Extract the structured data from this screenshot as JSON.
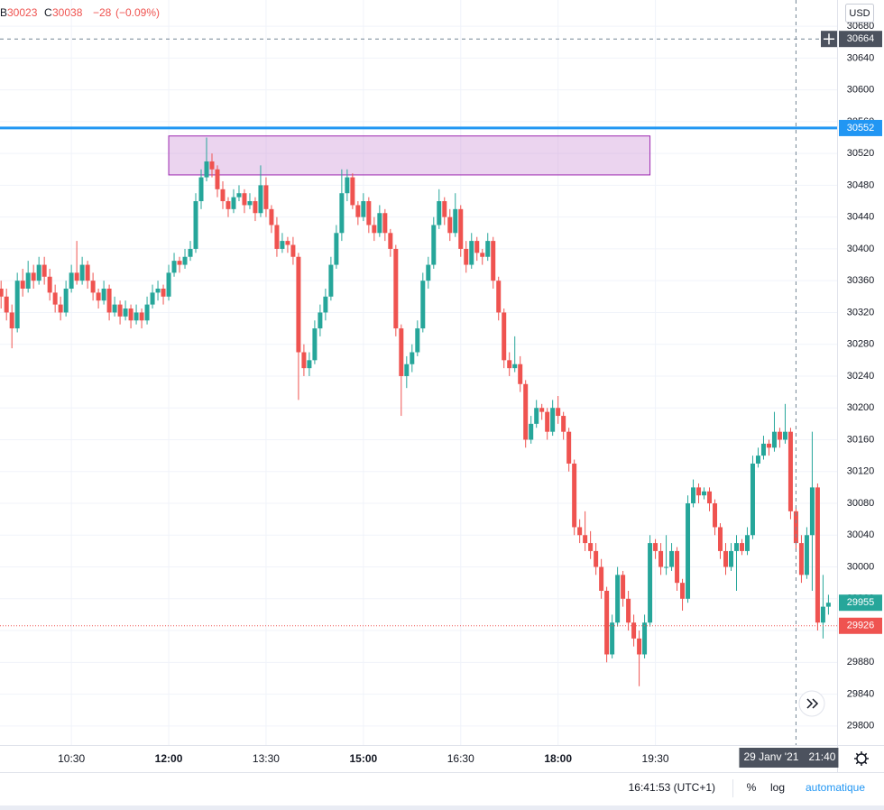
{
  "chart_data": {
    "type": "candlestick",
    "legend": {
      "low_label": "B",
      "low": 30023,
      "close_label": "C",
      "close": 30038,
      "change": {
        "value": -28,
        "label": "−28"
      },
      "change_pct": {
        "value": -0.09,
        "label": "(−0.09%)"
      }
    },
    "currency": "USD",
    "up_color": "#26a69a",
    "down_color": "#ef5350",
    "log_scale": false,
    "grid": true,
    "xlim": [
      "09:24",
      "22:18"
    ],
    "ylim": [
      29776,
      30713
    ],
    "xticks": [
      "10:30",
      "12:00",
      "13:30",
      "15:00",
      "16:30",
      "18:00",
      "19:30"
    ],
    "yticks": [
      29800,
      29840,
      29880,
      29920,
      29960,
      30000,
      30040,
      30080,
      30120,
      30160,
      30200,
      30240,
      30280,
      30320,
      30360,
      30400,
      30440,
      30480,
      30520,
      30560,
      30600,
      30640,
      30680
    ],
    "x": [
      "09:25",
      "09:30",
      "09:35",
      "09:40",
      "09:45",
      "09:50",
      "09:55",
      "10:00",
      "10:05",
      "10:10",
      "10:15",
      "10:20",
      "10:25",
      "10:30",
      "10:35",
      "10:40",
      "10:45",
      "10:50",
      "10:55",
      "11:00",
      "11:05",
      "11:10",
      "11:15",
      "11:20",
      "11:25",
      "11:30",
      "11:35",
      "11:40",
      "11:45",
      "11:50",
      "11:55",
      "12:00",
      "12:05",
      "12:10",
      "12:15",
      "12:20",
      "12:25",
      "12:30",
      "12:35",
      "12:40",
      "12:45",
      "12:50",
      "12:55",
      "13:00",
      "13:05",
      "13:10",
      "13:15",
      "13:20",
      "13:25",
      "13:30",
      "13:35",
      "13:40",
      "13:45",
      "13:50",
      "13:55",
      "14:00",
      "14:05",
      "14:10",
      "14:15",
      "14:20",
      "14:25",
      "14:30",
      "14:35",
      "14:40",
      "14:45",
      "14:50",
      "14:55",
      "15:00",
      "15:05",
      "15:10",
      "15:15",
      "15:20",
      "15:25",
      "15:30",
      "15:35",
      "15:40",
      "15:45",
      "15:50",
      "15:55",
      "16:00",
      "16:05",
      "16:10",
      "16:15",
      "16:20",
      "16:25",
      "16:30",
      "16:35",
      "16:40",
      "16:45",
      "16:50",
      "16:55",
      "17:00",
      "17:05",
      "17:10",
      "17:15",
      "17:20",
      "17:25",
      "17:30",
      "17:35",
      "17:40",
      "17:45",
      "17:50",
      "17:55",
      "18:00",
      "18:05",
      "18:10",
      "18:15",
      "18:20",
      "18:25",
      "18:30",
      "18:35",
      "18:40",
      "18:45",
      "18:50",
      "18:55",
      "19:00",
      "19:05",
      "19:10",
      "19:15",
      "19:20",
      "19:25",
      "19:30",
      "19:35",
      "19:40",
      "19:45",
      "19:50",
      "19:55",
      "20:00",
      "20:05",
      "20:10",
      "20:15",
      "20:20",
      "20:25",
      "20:30",
      "20:35",
      "20:40",
      "20:45",
      "20:50",
      "20:55",
      "21:00",
      "21:05",
      "21:10",
      "21:15",
      "21:20",
      "21:25",
      "21:30",
      "21:35",
      "21:40",
      "21:45",
      "21:50",
      "21:55",
      "22:00",
      "22:05",
      "22:10"
    ],
    "ohlc": [
      [
        30350,
        30360,
        30325,
        30340
      ],
      [
        30340,
        30350,
        30310,
        30320
      ],
      [
        30320,
        30330,
        30275,
        30300
      ],
      [
        30300,
        30370,
        30295,
        30360
      ],
      [
        30360,
        30375,
        30340,
        30350
      ],
      [
        30350,
        30385,
        30345,
        30370
      ],
      [
        30370,
        30380,
        30350,
        30360
      ],
      [
        30360,
        30390,
        30355,
        30380
      ],
      [
        30380,
        30390,
        30355,
        30365
      ],
      [
        30365,
        30375,
        30335,
        30345
      ],
      [
        30345,
        30355,
        30320,
        30330
      ],
      [
        30330,
        30340,
        30310,
        30320
      ],
      [
        30320,
        30360,
        30315,
        30350
      ],
      [
        30350,
        30380,
        30345,
        30370
      ],
      [
        30370,
        30410,
        30355,
        30360
      ],
      [
        30360,
        30390,
        30355,
        30380
      ],
      [
        30380,
        30385,
        30350,
        30360
      ],
      [
        30360,
        30370,
        30335,
        30345
      ],
      [
        30345,
        30350,
        30325,
        30335
      ],
      [
        30335,
        30360,
        30330,
        30350
      ],
      [
        30350,
        30355,
        30310,
        30320
      ],
      [
        30320,
        30340,
        30315,
        30330
      ],
      [
        30330,
        30335,
        30305,
        30315
      ],
      [
        30315,
        30335,
        30310,
        30325
      ],
      [
        30325,
        30330,
        30300,
        30310
      ],
      [
        30310,
        30330,
        30305,
        30320
      ],
      [
        30320,
        30325,
        30300,
        30310
      ],
      [
        30310,
        30340,
        30305,
        30330
      ],
      [
        30330,
        30355,
        30325,
        30345
      ],
      [
        30345,
        30360,
        30335,
        30350
      ],
      [
        30350,
        30355,
        30330,
        30340
      ],
      [
        30340,
        30380,
        30335,
        30370
      ],
      [
        30370,
        30395,
        30365,
        30385
      ],
      [
        30385,
        30390,
        30370,
        30380
      ],
      [
        30380,
        30400,
        30375,
        30390
      ],
      [
        30390,
        30410,
        30385,
        30400
      ],
      [
        30400,
        30470,
        30395,
        30460
      ],
      [
        30460,
        30500,
        30450,
        30490
      ],
      [
        30490,
        30540,
        30485,
        30510
      ],
      [
        30510,
        30520,
        30490,
        30500
      ],
      [
        30500,
        30505,
        30465,
        30475
      ],
      [
        30475,
        30485,
        30450,
        30460
      ],
      [
        30460,
        30465,
        30440,
        30450
      ],
      [
        30450,
        30475,
        30445,
        30465
      ],
      [
        30465,
        30480,
        30460,
        30470
      ],
      [
        30470,
        30475,
        30445,
        30455
      ],
      [
        30455,
        30470,
        30450,
        30460
      ],
      [
        30460,
        30465,
        30435,
        30445
      ],
      [
        30445,
        30505,
        30440,
        30480
      ],
      [
        30480,
        30490,
        30440,
        30450
      ],
      [
        30450,
        30455,
        30420,
        30430
      ],
      [
        30430,
        30440,
        30390,
        30400
      ],
      [
        30400,
        30420,
        30395,
        30410
      ],
      [
        30410,
        30415,
        30395,
        30405
      ],
      [
        30405,
        30415,
        30380,
        30390
      ],
      [
        30390,
        30395,
        30210,
        30270
      ],
      [
        30270,
        30280,
        30240,
        30250
      ],
      [
        30250,
        30270,
        30240,
        30260
      ],
      [
        30260,
        30310,
        30255,
        30300
      ],
      [
        30300,
        30330,
        30290,
        30320
      ],
      [
        30320,
        30350,
        30310,
        30340
      ],
      [
        30340,
        30390,
        30335,
        30380
      ],
      [
        30380,
        30430,
        30375,
        30420
      ],
      [
        30420,
        30500,
        30410,
        30470
      ],
      [
        30470,
        30500,
        30460,
        30490
      ],
      [
        30490,
        30495,
        30450,
        30455
      ],
      [
        30455,
        30460,
        30430,
        30440
      ],
      [
        30440,
        30470,
        30435,
        30460
      ],
      [
        30460,
        30465,
        30420,
        30430
      ],
      [
        30430,
        30440,
        30410,
        30420
      ],
      [
        30420,
        30455,
        30415,
        30445
      ],
      [
        30445,
        30450,
        30410,
        30420
      ],
      [
        30420,
        30425,
        30390,
        30400
      ],
      [
        30400,
        30405,
        30290,
        30300
      ],
      [
        30300,
        30305,
        30190,
        30240
      ],
      [
        30240,
        30265,
        30225,
        30255
      ],
      [
        30255,
        30280,
        30245,
        30270
      ],
      [
        30270,
        30310,
        30265,
        30300
      ],
      [
        30300,
        30370,
        30295,
        30360
      ],
      [
        30360,
        30390,
        30350,
        30380
      ],
      [
        30380,
        30440,
        30375,
        30430
      ],
      [
        30430,
        30475,
        30425,
        30460
      ],
      [
        30460,
        30465,
        30430,
        30440
      ],
      [
        30440,
        30450,
        30410,
        30420
      ],
      [
        30420,
        30470,
        30415,
        30450
      ],
      [
        30450,
        30455,
        30390,
        30400
      ],
      [
        30400,
        30410,
        30370,
        30380
      ],
      [
        30380,
        30420,
        30375,
        30410
      ],
      [
        30410,
        30415,
        30385,
        30395
      ],
      [
        30395,
        30400,
        30380,
        30390
      ],
      [
        30390,
        30420,
        30385,
        30410
      ],
      [
        30410,
        30415,
        30350,
        30360
      ],
      [
        30360,
        30365,
        30310,
        30320
      ],
      [
        30320,
        30325,
        30250,
        30260
      ],
      [
        30260,
        30270,
        30240,
        30250
      ],
      [
        30250,
        30290,
        30245,
        30255
      ],
      [
        30255,
        30265,
        30220,
        30230
      ],
      [
        30230,
        30235,
        30150,
        30160
      ],
      [
        30160,
        30190,
        30155,
        30180
      ],
      [
        30180,
        30210,
        30175,
        30200
      ],
      [
        30200,
        30205,
        30185,
        30195
      ],
      [
        30195,
        30200,
        30160,
        30170
      ],
      [
        30170,
        30210,
        30165,
        30200
      ],
      [
        30200,
        30215,
        30180,
        30190
      ],
      [
        30190,
        30195,
        30160,
        30170
      ],
      [
        30170,
        30175,
        30120,
        30130
      ],
      [
        30130,
        30135,
        30040,
        30050
      ],
      [
        30050,
        30060,
        30030,
        30040
      ],
      [
        30040,
        30070,
        30020,
        30030
      ],
      [
        30030,
        30045,
        30010,
        30020
      ],
      [
        30020,
        30030,
        29990,
        30000
      ],
      [
        30000,
        30010,
        29960,
        29970
      ],
      [
        29970,
        29975,
        29880,
        29890
      ],
      [
        29890,
        29940,
        29885,
        29930
      ],
      [
        29930,
        30000,
        29925,
        29990
      ],
      [
        29990,
        29995,
        29950,
        29960
      ],
      [
        29960,
        29970,
        29920,
        29930
      ],
      [
        29930,
        29940,
        29900,
        29910
      ],
      [
        29910,
        29920,
        29850,
        29890
      ],
      [
        29890,
        29940,
        29885,
        29930
      ],
      [
        29930,
        30040,
        29925,
        30030
      ],
      [
        30030,
        30035,
        30010,
        30020
      ],
      [
        30020,
        30030,
        29990,
        30000
      ],
      [
        30000,
        30040,
        29990,
        30000
      ],
      [
        30000,
        30030,
        29995,
        30020
      ],
      [
        30020,
        30025,
        29970,
        29980
      ],
      [
        29980,
        29985,
        29945,
        29960
      ],
      [
        29960,
        30090,
        29955,
        30080
      ],
      [
        30080,
        30110,
        30075,
        30100
      ],
      [
        30100,
        30105,
        30080,
        30090
      ],
      [
        30090,
        30100,
        30085,
        30095
      ],
      [
        30095,
        30100,
        30070,
        30080
      ],
      [
        30080,
        30085,
        30040,
        30050
      ],
      [
        30050,
        30055,
        30010,
        30020
      ],
      [
        30020,
        30030,
        29990,
        30000
      ],
      [
        30000,
        30030,
        29995,
        30020
      ],
      [
        30020,
        30040,
        29970,
        30030
      ],
      [
        30030,
        30035,
        30015,
        30020
      ],
      [
        30020,
        30050,
        30015,
        30040
      ],
      [
        30040,
        30140,
        30035,
        30130
      ],
      [
        30130,
        30150,
        30125,
        30140
      ],
      [
        30140,
        30165,
        30135,
        30155
      ],
      [
        30155,
        30160,
        30140,
        30150
      ],
      [
        30150,
        30195,
        30145,
        30170
      ],
      [
        30170,
        30175,
        30150,
        30160
      ],
      [
        30160,
        30205,
        30155,
        30170
      ],
      [
        30170,
        30175,
        30060,
        30070
      ],
      [
        30070,
        30075,
        30020,
        30030
      ],
      [
        30030,
        30040,
        29980,
        29990
      ],
      [
        29990,
        30050,
        29985,
        30040
      ],
      [
        30040,
        30170,
        29970,
        30100
      ],
      [
        30100,
        30105,
        29920,
        29930
      ],
      [
        29930,
        29990,
        29910,
        29950
      ],
      [
        29950,
        29965,
        29940,
        29955
      ]
    ],
    "zone": {
      "x": [
        "12:00",
        "19:25"
      ],
      "y": [
        30493,
        30542
      ],
      "color": "#ce93d8",
      "border": "#9c27b0"
    },
    "lines": [
      {
        "value": 30552,
        "color": "#2196f3",
        "style": "solid"
      },
      {
        "value": 29926,
        "color": "#ef5350",
        "style": "dotted"
      }
    ],
    "last_price": 29955,
    "crosshair": {
      "date": "29 Janv '21",
      "time": "21:40",
      "price": 30664
    },
    "footer": {
      "clock": "16:41:53 (UTC+1)",
      "percent": "%",
      "log": "log",
      "auto": "automatique"
    }
  }
}
